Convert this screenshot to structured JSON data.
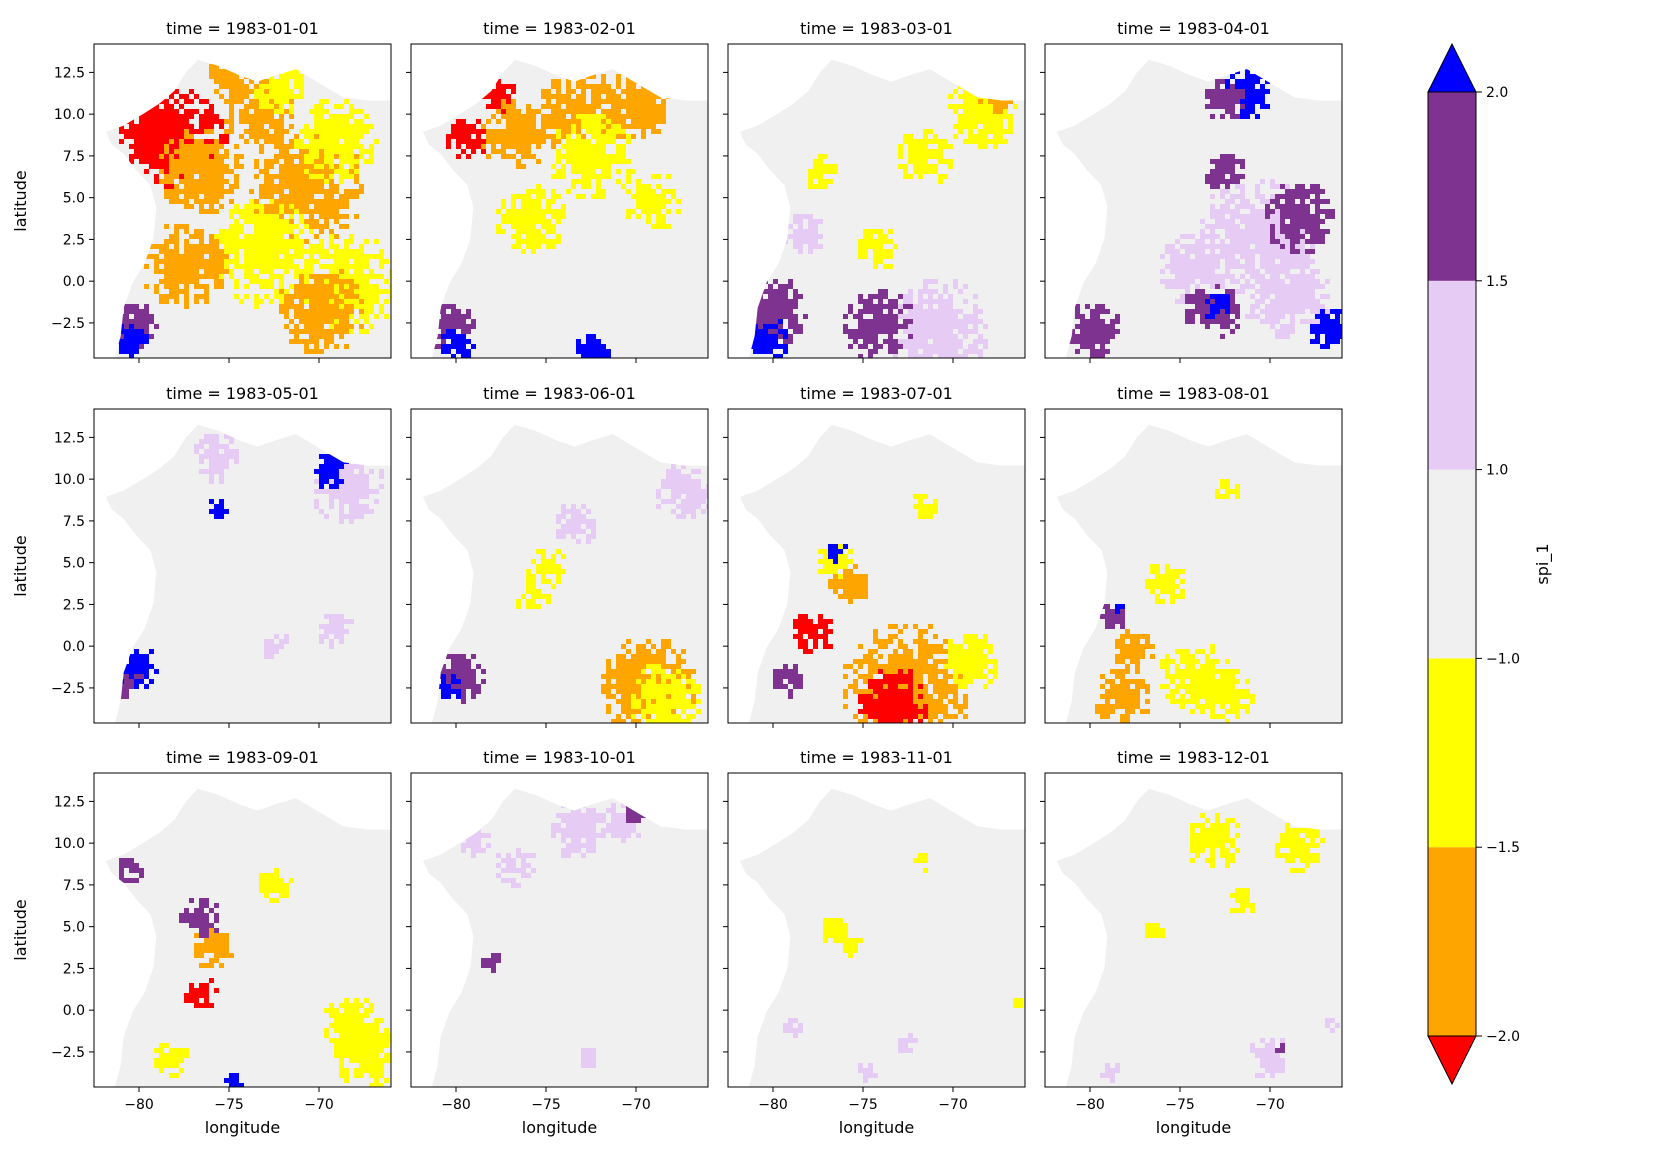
{
  "chart_data": {
    "type": "heatmap",
    "description_free": true,
    "x_axis": {
      "label": "longitude",
      "ticks": [
        -80,
        -75,
        -70
      ],
      "tick_labels": [
        "−80",
        "−75",
        "−70"
      ],
      "range": [
        -82.5,
        -66.0
      ]
    },
    "y_axis": {
      "label": "latitude",
      "ticks": [
        -2.5,
        0.0,
        2.5,
        5.0,
        7.5,
        10.0,
        12.5
      ],
      "tick_labels": [
        "−2.5",
        "0.0",
        "2.5",
        "5.0",
        "7.5",
        "10.0",
        "12.5"
      ],
      "range": [
        -4.6,
        14.2
      ]
    },
    "colorbar": {
      "label": "spi_1",
      "boundaries": [
        -2.0,
        -1.5,
        -1.0,
        1.0,
        1.5,
        2.0
      ],
      "tick_labels": [
        "−2.0",
        "−1.5",
        "−1.0",
        "1.0",
        "1.5",
        "2.0"
      ],
      "extend": "both",
      "colors": {
        "under": "#ff0000",
        "bins": [
          "#ffa500",
          "#ffff00",
          "#f0f0f0",
          "#e6ccf5",
          "#7f3391"
        ],
        "over": "#0000ff"
      }
    },
    "panels": [
      {
        "title": "time = 1983-01-01",
        "dominant": "dry"
      },
      {
        "title": "time = 1983-02-01",
        "dominant": "dry"
      },
      {
        "title": "time = 1983-03-01",
        "dominant": "mixed"
      },
      {
        "title": "time = 1983-04-01",
        "dominant": "wet"
      },
      {
        "title": "time = 1983-05-01",
        "dominant": "neutral"
      },
      {
        "title": "time = 1983-06-01",
        "dominant": "neutral"
      },
      {
        "title": "time = 1983-07-01",
        "dominant": "dry-south"
      },
      {
        "title": "time = 1983-08-01",
        "dominant": "neutral"
      },
      {
        "title": "time = 1983-09-01",
        "dominant": "neutral"
      },
      {
        "title": "time = 1983-10-01",
        "dominant": "neutral"
      },
      {
        "title": "time = 1983-11-01",
        "dominant": "neutral"
      },
      {
        "title": "time = 1983-12-01",
        "dominant": "neutral"
      }
    ],
    "grid": false
  }
}
